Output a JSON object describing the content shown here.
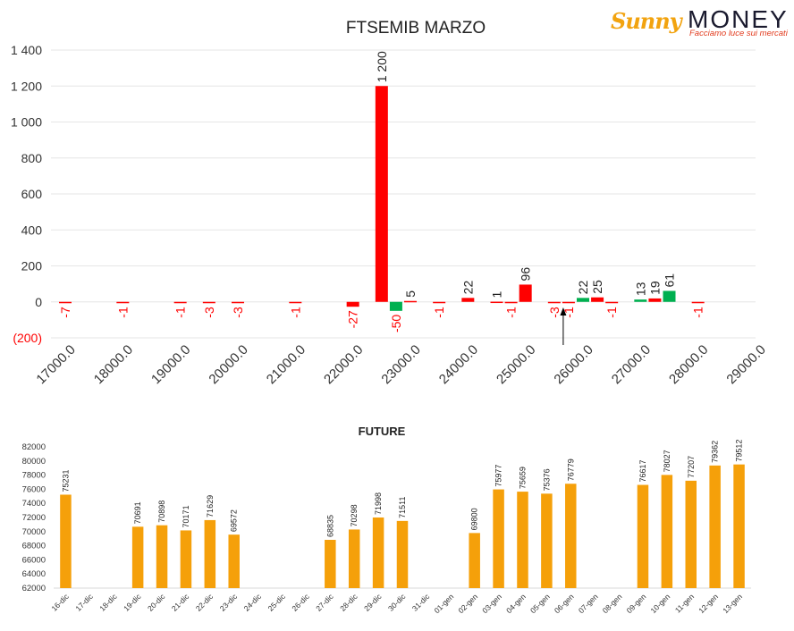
{
  "logo": {
    "brand_left": "Sunny",
    "brand_right": "MONEY",
    "tagline": "Facciamo luce sui mercati"
  },
  "colors": {
    "negative": "#ff0000",
    "positive": "#00b050",
    "future_bar": "#f5a00a",
    "axis_text": "#333333",
    "grid": "#e6e6e6"
  },
  "chart_data": [
    {
      "type": "bar",
      "title": "FTSEMIB MARZO",
      "xlabel": "",
      "ylabel": "",
      "ylim": [
        -200,
        1400
      ],
      "y_ticks": [
        "(200)",
        "0",
        "200",
        "400",
        "600",
        "800",
        "1 000",
        "1 200",
        "1 400"
      ],
      "x_ticks": [
        "17000.0",
        "18000.0",
        "19000.0",
        "20000.0",
        "21000.0",
        "22000.0",
        "23000.0",
        "24000.0",
        "25000.0",
        "26000.0",
        "27000.0",
        "28000.0",
        "29000.0"
      ],
      "grid": true,
      "marker": {
        "x": 25750,
        "symbol": "arrow-up"
      },
      "bars": [
        {
          "x": 17000,
          "value": -7,
          "label": "-7",
          "color": "red"
        },
        {
          "x": 18000,
          "value": -1,
          "label": "-1",
          "color": "red"
        },
        {
          "x": 19000,
          "value": -1,
          "label": "-1",
          "color": "red"
        },
        {
          "x": 19500,
          "value": -3,
          "label": "-3",
          "color": "red"
        },
        {
          "x": 20000,
          "value": -3,
          "label": "-3",
          "color": "red"
        },
        {
          "x": 21000,
          "value": -1,
          "label": "-1",
          "color": "red"
        },
        {
          "x": 22000,
          "value": -27,
          "label": "-27",
          "color": "red"
        },
        {
          "x": 22500,
          "value": 1200,
          "label": "1 200",
          "color": "red"
        },
        {
          "x": 22750,
          "value": -50,
          "label": "-50",
          "color": "green"
        },
        {
          "x": 23000,
          "value": 5,
          "label": "5",
          "color": "red"
        },
        {
          "x": 23500,
          "value": -1,
          "label": "-1",
          "color": "red"
        },
        {
          "x": 24000,
          "value": 22,
          "label": "22",
          "color": "red"
        },
        {
          "x": 24500,
          "value": 1,
          "label": "1",
          "color": "red"
        },
        {
          "x": 24750,
          "value": -1,
          "label": "-1",
          "color": "red"
        },
        {
          "x": 25000,
          "value": 96,
          "label": "96",
          "color": "red"
        },
        {
          "x": 25500,
          "value": -3,
          "label": "-3",
          "color": "red"
        },
        {
          "x": 25750,
          "value": -1,
          "label": "-1",
          "color": "red"
        },
        {
          "x": 26000,
          "value": 22,
          "label": "22",
          "color": "green"
        },
        {
          "x": 26250,
          "value": 25,
          "label": "25",
          "color": "red"
        },
        {
          "x": 26500,
          "value": -1,
          "label": "-1",
          "color": "red"
        },
        {
          "x": 27000,
          "value": 13,
          "label": "13",
          "color": "green"
        },
        {
          "x": 27250,
          "value": 19,
          "label": "19",
          "color": "red"
        },
        {
          "x": 27500,
          "value": 61,
          "label": "61",
          "color": "green"
        },
        {
          "x": 28000,
          "value": -1,
          "label": "-1",
          "color": "red"
        }
      ]
    },
    {
      "type": "bar",
      "title": "FUTURE",
      "xlabel": "",
      "ylabel": "",
      "ylim": [
        62000,
        82000
      ],
      "y_ticks": [
        "62000",
        "64000",
        "66000",
        "68000",
        "70000",
        "72000",
        "74000",
        "76000",
        "78000",
        "80000",
        "82000"
      ],
      "grid": false,
      "categories": [
        "16-dic",
        "17-dic",
        "18-dic",
        "19-dic",
        "20-dic",
        "21-dic",
        "22-dic",
        "23-dic",
        "24-dic",
        "25-dic",
        "26-dic",
        "27-dic",
        "28-dic",
        "29-dic",
        "30-dic",
        "31-dic",
        "01-gen",
        "02-gen",
        "03-gen",
        "04-gen",
        "05-gen",
        "06-gen",
        "07-gen",
        "08-gen",
        "09-gen",
        "10-gen",
        "11-gen",
        "12-gen",
        "13-gen"
      ],
      "values": [
        75231,
        null,
        null,
        70691,
        70898,
        70171,
        71629,
        69572,
        null,
        null,
        null,
        68835,
        70298,
        71998,
        71511,
        null,
        null,
        69800,
        75977,
        75659,
        75376,
        76779,
        null,
        null,
        76617,
        78027,
        77207,
        79362,
        79512
      ]
    }
  ]
}
